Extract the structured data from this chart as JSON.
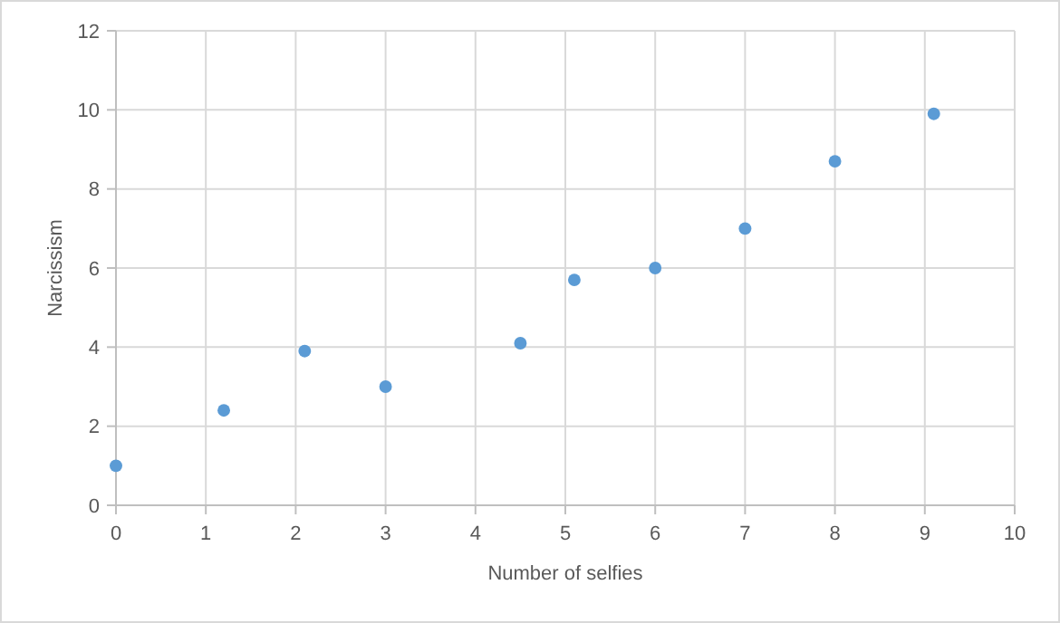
{
  "chart_data": {
    "type": "scatter",
    "xlabel": "Number of selfies",
    "ylabel": "Narcissism",
    "x": [
      0,
      1.2,
      2.1,
      3,
      4.5,
      5.1,
      6,
      7,
      8,
      9.1
    ],
    "series": [
      {
        "color": "#5b9bd5",
        "values": [
          1,
          2.4,
          3.9,
          3,
          4.1,
          5.7,
          6,
          7,
          8.7,
          9.9
        ]
      }
    ],
    "xlim": [
      0,
      10
    ],
    "xticks": [
      0,
      1,
      2,
      3,
      4,
      5,
      6,
      7,
      8,
      9,
      10
    ],
    "ylim": [
      0,
      12
    ],
    "yticks": [
      0,
      2,
      4,
      6,
      8,
      10,
      12
    ],
    "grid": true,
    "marker": "circle"
  }
}
